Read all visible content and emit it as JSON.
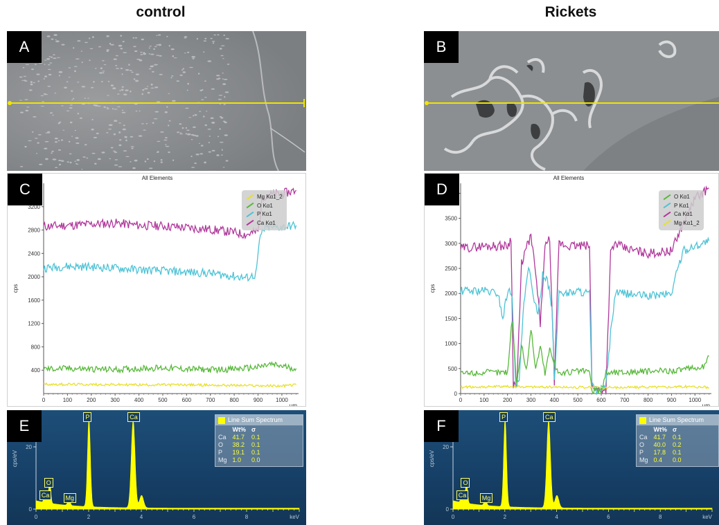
{
  "titles": {
    "left": "control",
    "right": "Rickets"
  },
  "letters": {
    "A": "A",
    "B": "B",
    "C": "C",
    "D": "D",
    "E": "E",
    "F": "F"
  },
  "colors": {
    "Ca": "#b0379b",
    "P": "#4cc3d6",
    "O": "#57b83a",
    "Mg": "#e8e02a",
    "scanline": "#f1e500",
    "spec_fill": "#ffff00"
  },
  "chart_data": [
    {
      "type": "line",
      "panel": "C",
      "title": "All Elements",
      "ylabel": "cps",
      "xlabel": "µm",
      "xlim": [
        0,
        1070
      ],
      "ylim": [
        0,
        3600
      ],
      "xticks": [
        0,
        100,
        200,
        300,
        400,
        500,
        600,
        700,
        800,
        900,
        1000
      ],
      "yticks": [
        400,
        800,
        1200,
        1600,
        2000,
        2400,
        2800,
        3200
      ],
      "legend_position": "top-right",
      "legend": [
        "Mg Kα1_2",
        "O Kα1",
        "P Kα1",
        "Ca Kα1"
      ],
      "series": [
        {
          "name": "Ca Kα1",
          "element": "Ca",
          "x": [
            0,
            100,
            200,
            300,
            400,
            500,
            600,
            700,
            800,
            850,
            900,
            920,
            950,
            1000,
            1060
          ],
          "y": [
            2860,
            2880,
            2900,
            2920,
            2880,
            2870,
            2840,
            2810,
            2760,
            2720,
            2780,
            3380,
            3400,
            3420,
            3480
          ]
        },
        {
          "name": "P Kα1",
          "element": "P",
          "x": [
            0,
            100,
            200,
            300,
            400,
            500,
            600,
            700,
            800,
            850,
            890,
            910,
            930,
            1000,
            1060
          ],
          "y": [
            2150,
            2180,
            2170,
            2150,
            2120,
            2100,
            2080,
            2060,
            2010,
            1980,
            2030,
            2700,
            2840,
            2850,
            2880
          ]
        },
        {
          "name": "O Kα1",
          "element": "O",
          "x": [
            0,
            100,
            200,
            300,
            400,
            500,
            600,
            700,
            800,
            900,
            950,
            1000,
            1060
          ],
          "y": [
            420,
            430,
            420,
            410,
            430,
            440,
            420,
            410,
            420,
            450,
            500,
            470,
            430
          ]
        },
        {
          "name": "Mg Kα1_2",
          "element": "Mg",
          "x": [
            0,
            200,
            400,
            600,
            800,
            1000,
            1060
          ],
          "y": [
            160,
            155,
            150,
            150,
            140,
            130,
            150
          ]
        }
      ]
    },
    {
      "type": "line",
      "panel": "D",
      "title": "All Elements",
      "ylabel": "cps",
      "xlabel": "µm",
      "xlim": [
        0,
        1070
      ],
      "ylim": [
        0,
        4200
      ],
      "xticks": [
        0,
        100,
        200,
        300,
        400,
        500,
        600,
        700,
        800,
        900,
        1000
      ],
      "yticks": [
        0,
        500,
        1000,
        1500,
        2000,
        2500,
        3000,
        3500,
        4000
      ],
      "legend_position": "top-right",
      "legend": [
        "O Kα1",
        "P Kα1",
        "Ca Kα1",
        "Mg Kα1_2"
      ],
      "series": [
        {
          "name": "Ca Kα1",
          "element": "Ca",
          "x": [
            0,
            100,
            200,
            215,
            225,
            240,
            260,
            280,
            300,
            320,
            340,
            360,
            380,
            400,
            420,
            450,
            500,
            550,
            560,
            580,
            600,
            620,
            640,
            660,
            700,
            800,
            900,
            950,
            1000,
            1060
          ],
          "y": [
            2900,
            2950,
            2950,
            3100,
            200,
            150,
            2600,
            2900,
            3150,
            2400,
            1400,
            2900,
            3100,
            250,
            3000,
            2950,
            2950,
            2950,
            200,
            80,
            100,
            80,
            2800,
            3000,
            2900,
            2800,
            2850,
            3400,
            3900,
            4100
          ]
        },
        {
          "name": "P Kα1",
          "element": "P",
          "x": [
            0,
            100,
            160,
            180,
            200,
            220,
            235,
            250,
            270,
            290,
            310,
            330,
            350,
            370,
            390,
            400,
            420,
            450,
            500,
            550,
            560,
            580,
            600,
            620,
            640,
            660,
            700,
            800,
            900,
            920,
            950,
            1000,
            1060
          ],
          "y": [
            2050,
            2060,
            2000,
            1500,
            2050,
            2000,
            100,
            300,
            1800,
            2500,
            2000,
            1500,
            2400,
            2300,
            1700,
            200,
            2050,
            2000,
            2050,
            2000,
            150,
            50,
            80,
            150,
            1200,
            2000,
            2000,
            1950,
            2000,
            2400,
            2850,
            2950,
            3050
          ]
        },
        {
          "name": "O Kα1",
          "element": "O",
          "x": [
            0,
            100,
            200,
            220,
            240,
            260,
            280,
            300,
            320,
            340,
            360,
            380,
            400,
            420,
            500,
            550,
            560,
            580,
            600,
            620,
            700,
            800,
            900,
            1000,
            1040,
            1060
          ],
          "y": [
            400,
            420,
            430,
            1500,
            150,
            1000,
            450,
            1300,
            500,
            950,
            400,
            900,
            600,
            400,
            450,
            450,
            50,
            80,
            50,
            420,
            430,
            440,
            460,
            500,
            550,
            750
          ]
        },
        {
          "name": "Mg Kα1_2",
          "element": "Mg",
          "x": [
            0,
            200,
            400,
            600,
            800,
            1000,
            1060
          ],
          "y": [
            130,
            140,
            130,
            120,
            130,
            140,
            120
          ]
        }
      ]
    },
    {
      "type": "area",
      "panel": "E",
      "ylabel": "cps/eV",
      "xlabel": "keV",
      "xlim": [
        0,
        10
      ],
      "ylim": [
        0,
        30
      ],
      "xticks": [
        0,
        2,
        4,
        6,
        8
      ],
      "yticks": [
        0,
        20
      ],
      "peaks": [
        {
          "label": "Ca",
          "x": 0.34,
          "y": 3
        },
        {
          "label": "O",
          "x": 0.52,
          "y": 7
        },
        {
          "label": "Mg",
          "x": 1.25,
          "y": 2
        },
        {
          "label": "P",
          "x": 2.01,
          "y": 28
        },
        {
          "label": "Ca",
          "x": 3.69,
          "y": 28
        },
        {
          "label": "",
          "x": 4.01,
          "y": 4
        }
      ],
      "legend": "Line Sum Spectrum",
      "table": {
        "header": [
          "",
          "Wt%",
          "σ"
        ],
        "rows": [
          [
            "Ca",
            "41.7",
            "0.1"
          ],
          [
            "O",
            "38.2",
            "0.1"
          ],
          [
            "P",
            "19.1",
            "0.1"
          ],
          [
            "Mg",
            "1.0",
            "0.0"
          ]
        ]
      }
    },
    {
      "type": "area",
      "panel": "F",
      "ylabel": "cps/eV",
      "xlabel": "keV",
      "xlim": [
        0,
        10
      ],
      "ylim": [
        0,
        30
      ],
      "xticks": [
        0,
        2,
        4,
        6,
        8
      ],
      "yticks": [
        0,
        20
      ],
      "peaks": [
        {
          "label": "Ca",
          "x": 0.34,
          "y": 3
        },
        {
          "label": "O",
          "x": 0.52,
          "y": 7
        },
        {
          "label": "Mg",
          "x": 1.25,
          "y": 2
        },
        {
          "label": "P",
          "x": 2.01,
          "y": 28
        },
        {
          "label": "Ca",
          "x": 3.69,
          "y": 28
        },
        {
          "label": "",
          "x": 4.01,
          "y": 4
        }
      ],
      "legend": "Line Sum Spectrum",
      "table": {
        "header": [
          "",
          "Wt%",
          "σ"
        ],
        "rows": [
          [
            "Ca",
            "41.7",
            "0.1"
          ],
          [
            "O",
            "40.0",
            "0.2"
          ],
          [
            "P",
            "17.8",
            "0.1"
          ],
          [
            "Mg",
            "0.4",
            "0.0"
          ]
        ]
      }
    }
  ]
}
